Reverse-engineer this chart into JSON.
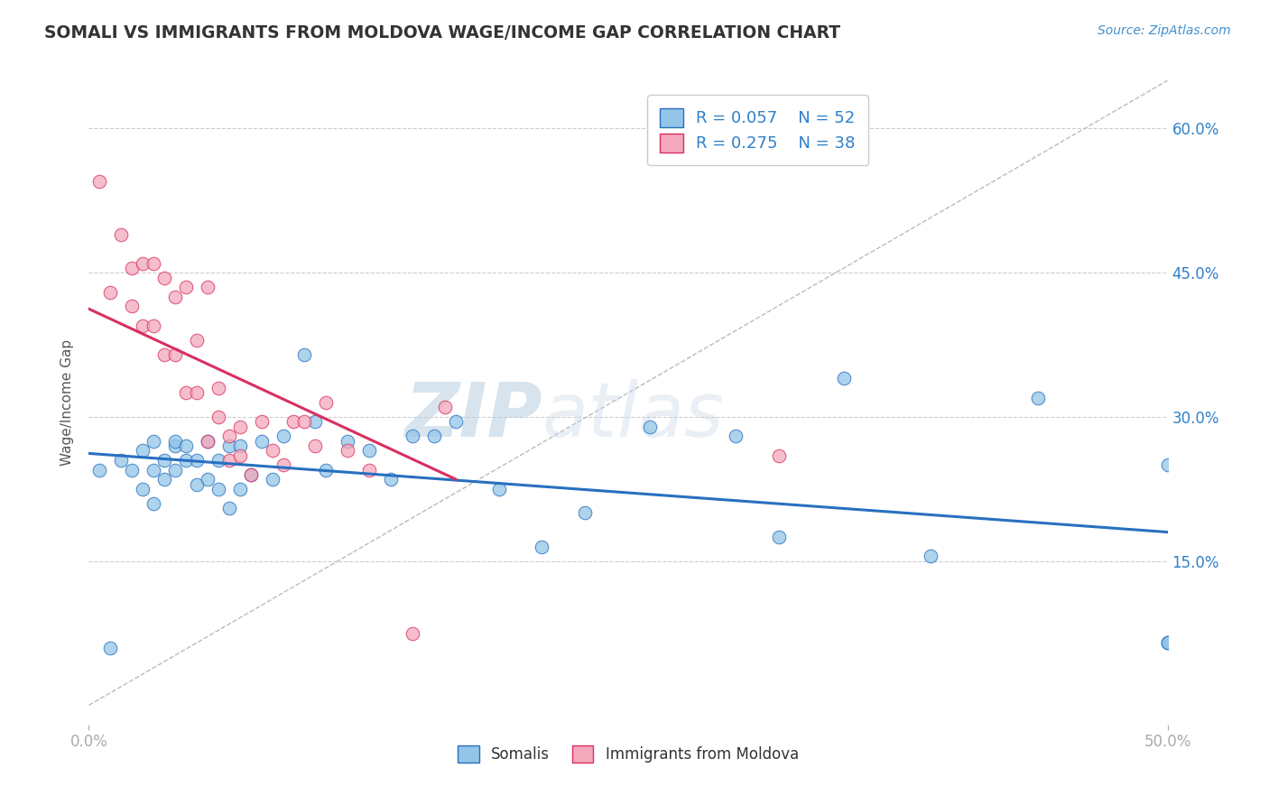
{
  "title": "SOMALI VS IMMIGRANTS FROM MOLDOVA WAGE/INCOME GAP CORRELATION CHART",
  "source": "Source: ZipAtlas.com",
  "ylabel": "Wage/Income Gap",
  "ytick_vals": [
    0.15,
    0.3,
    0.45,
    0.6
  ],
  "ytick_labels": [
    "15.0%",
    "30.0%",
    "45.0%",
    "60.0%"
  ],
  "xlim": [
    0.0,
    0.5
  ],
  "ylim": [
    -0.02,
    0.65
  ],
  "legend_label1": "Somalis",
  "legend_label2": "Immigrants from Moldova",
  "R1": 0.057,
  "N1": 52,
  "R2": 0.275,
  "N2": 38,
  "color_blue": "#92C5E8",
  "color_pink": "#F4A8BB",
  "color_line_blue": "#2870C0",
  "color_line_pink": "#D83060",
  "watermark_zip": "ZIP",
  "watermark_atlas": "atlas",
  "background": "#FFFFFF",
  "somali_x": [
    0.005,
    0.01,
    0.015,
    0.02,
    0.025,
    0.025,
    0.03,
    0.03,
    0.03,
    0.035,
    0.035,
    0.04,
    0.04,
    0.04,
    0.045,
    0.045,
    0.05,
    0.05,
    0.055,
    0.055,
    0.06,
    0.06,
    0.065,
    0.065,
    0.07,
    0.07,
    0.075,
    0.08,
    0.085,
    0.09,
    0.1,
    0.105,
    0.11,
    0.12,
    0.13,
    0.14,
    0.15,
    0.16,
    0.17,
    0.19,
    0.21,
    0.23,
    0.26,
    0.3,
    0.32,
    0.35,
    0.39,
    0.44,
    0.5,
    0.5,
    0.5,
    0.5
  ],
  "somali_y": [
    0.245,
    0.06,
    0.255,
    0.245,
    0.265,
    0.225,
    0.245,
    0.275,
    0.21,
    0.255,
    0.235,
    0.27,
    0.245,
    0.275,
    0.255,
    0.27,
    0.23,
    0.255,
    0.235,
    0.275,
    0.255,
    0.225,
    0.27,
    0.205,
    0.225,
    0.27,
    0.24,
    0.275,
    0.235,
    0.28,
    0.365,
    0.295,
    0.245,
    0.275,
    0.265,
    0.235,
    0.28,
    0.28,
    0.295,
    0.225,
    0.165,
    0.2,
    0.29,
    0.28,
    0.175,
    0.34,
    0.155,
    0.32,
    0.25,
    0.065,
    0.065,
    0.065
  ],
  "moldova_x": [
    0.005,
    0.01,
    0.015,
    0.02,
    0.02,
    0.025,
    0.025,
    0.03,
    0.03,
    0.035,
    0.035,
    0.04,
    0.04,
    0.045,
    0.045,
    0.05,
    0.05,
    0.055,
    0.055,
    0.06,
    0.06,
    0.065,
    0.065,
    0.07,
    0.07,
    0.075,
    0.08,
    0.085,
    0.09,
    0.095,
    0.1,
    0.105,
    0.11,
    0.12,
    0.13,
    0.15,
    0.165,
    0.32
  ],
  "moldova_y": [
    0.545,
    0.43,
    0.49,
    0.455,
    0.415,
    0.46,
    0.395,
    0.46,
    0.395,
    0.445,
    0.365,
    0.425,
    0.365,
    0.435,
    0.325,
    0.38,
    0.325,
    0.435,
    0.275,
    0.3,
    0.33,
    0.28,
    0.255,
    0.29,
    0.26,
    0.24,
    0.295,
    0.265,
    0.25,
    0.295,
    0.295,
    0.27,
    0.315,
    0.265,
    0.245,
    0.075,
    0.31,
    0.26
  ],
  "diag_line_x": [
    0.0,
    0.5
  ],
  "diag_line_y": [
    0.0,
    0.65
  ]
}
